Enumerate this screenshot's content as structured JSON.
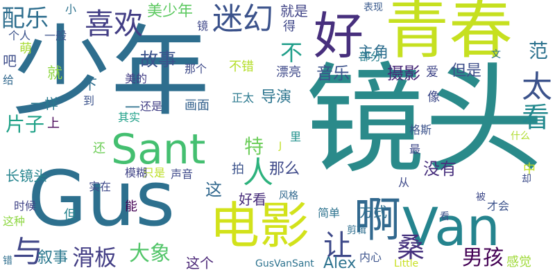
{
  "words": [
    {
      "text": "镜头",
      "color": "#2a8a8a"
    },
    {
      "text": "少年",
      "color": "#2e6e8e"
    },
    {
      "text": "Gus",
      "color": "#2d708e"
    },
    {
      "text": "青春",
      "color": "#c6e020"
    },
    {
      "text": "Van",
      "color": "#25848e"
    },
    {
      "text": "电影",
      "color": "#d2e21b"
    },
    {
      "text": "好",
      "color": "#472f7d"
    },
    {
      "text": "Sant",
      "color": "#44bf70"
    },
    {
      "text": "啊",
      "color": "#31688e"
    },
    {
      "text": "迷幻",
      "color": "#3b528b"
    },
    {
      "text": "喜欢",
      "color": "#433e85"
    },
    {
      "text": "配乐",
      "color": "#2e6e8e"
    },
    {
      "text": "人",
      "color": "#2db27d"
    },
    {
      "text": "让",
      "color": "#3e4989"
    },
    {
      "text": "太",
      "color": "#3b528b"
    },
    {
      "text": "看",
      "color": "#23898e"
    },
    {
      "text": "不",
      "color": "#1f9e89"
    },
    {
      "text": "与",
      "color": "#404688"
    },
    {
      "text": "滑板",
      "color": "#433e85"
    },
    {
      "text": "桑",
      "color": "#46327e"
    },
    {
      "text": "男孩",
      "color": "#440154"
    },
    {
      "text": "大象",
      "color": "#52c569"
    },
    {
      "text": "故事",
      "color": "#3b528b"
    },
    {
      "text": "美少年",
      "color": "#5ec962"
    },
    {
      "text": "范",
      "color": "#2c728e"
    },
    {
      "text": "主角",
      "color": "#2e6e8e"
    },
    {
      "text": "摄影",
      "color": "#482878"
    },
    {
      "text": "音乐",
      "color": "#3b528b"
    },
    {
      "text": "片子",
      "color": "#1fa187"
    },
    {
      "text": "就是",
      "color": "#414487"
    },
    {
      "text": "导演",
      "color": "#2b748e"
    },
    {
      "text": "那么",
      "color": "#3e4989"
    },
    {
      "text": "特",
      "color": "#6ccd5a"
    },
    {
      "text": "没有",
      "color": "#472f7d"
    },
    {
      "text": "这个",
      "color": "#482475"
    },
    {
      "text": "Alex",
      "color": "#2c728e"
    },
    {
      "text": "叙事",
      "color": "#2a788e"
    },
    {
      "text": "长镜头",
      "color": "#25848e"
    },
    {
      "text": "这",
      "color": "#31688e"
    },
    {
      "text": "好看",
      "color": "#472c7a"
    },
    {
      "text": "方式",
      "color": "#2e6e8e"
    },
    {
      "text": "画面",
      "color": "#34618d"
    },
    {
      "text": "不错",
      "color": "#b5de2b"
    },
    {
      "text": "但是",
      "color": "#3d4e8a"
    },
    {
      "text": "感觉",
      "color": "#a0da39"
    },
    {
      "text": "一样",
      "color": "#2a788e"
    },
    {
      "text": "就",
      "color": "#90d743"
    },
    {
      "text": "那个",
      "color": "#3e4a89"
    },
    {
      "text": "漂亮",
      "color": "#3e4989"
    },
    {
      "text": "爱",
      "color": "#404688"
    },
    {
      "text": "像",
      "color": "#3e4a89"
    },
    {
      "text": "部分",
      "color": "#277f8e"
    },
    {
      "text": "美的",
      "color": "#433e85"
    },
    {
      "text": "一般",
      "color": "#3b528b"
    },
    {
      "text": "个人",
      "color": "#3b528b"
    },
    {
      "text": "萌",
      "color": "#a8db34"
    },
    {
      "text": "吧",
      "color": "#3d4d8a"
    },
    {
      "text": "给",
      "color": "#31688e"
    },
    {
      "text": "小",
      "color": "#2c728e"
    },
    {
      "text": "镜",
      "color": "#3f4788"
    },
    {
      "text": "得",
      "color": "#3f4788"
    },
    {
      "text": "表现",
      "color": "#38598c"
    },
    {
      "text": "文",
      "color": "#2c728e"
    },
    {
      "text": "下",
      "color": "#2e6e8e"
    },
    {
      "text": "到",
      "color": "#3b528b"
    },
    {
      "text": "一",
      "color": "#2d708e"
    },
    {
      "text": "还是",
      "color": "#424086"
    },
    {
      "text": "其实",
      "color": "#1fa088"
    },
    {
      "text": "上",
      "color": "#440154"
    },
    {
      "text": "正太",
      "color": "#2a788e"
    },
    {
      "text": "里",
      "color": "#21918c"
    },
    {
      "text": "格斯",
      "color": "#3b528b"
    },
    {
      "text": "什么",
      "color": "#b0dd2f"
    },
    {
      "text": "最",
      "color": "#3e4989"
    },
    {
      "text": "J",
      "color": "#c0df25"
    },
    {
      "text": "中",
      "color": "#c2df23"
    },
    {
      "text": "还",
      "color": "#6ece58"
    },
    {
      "text": "拍",
      "color": "#3b528b"
    },
    {
      "text": "只是",
      "color": "#bddf26"
    },
    {
      "text": "声音",
      "color": "#3e4989"
    },
    {
      "text": "模糊",
      "color": "#414487"
    },
    {
      "text": "却",
      "color": "#3d4d8a"
    },
    {
      "text": "实在",
      "color": "#3e4a89"
    },
    {
      "text": "从",
      "color": "#3e4989"
    },
    {
      "text": "能",
      "color": "#440154"
    },
    {
      "text": "时候",
      "color": "#414487"
    },
    {
      "text": "风格",
      "color": "#31688e"
    },
    {
      "text": "被",
      "color": "#3e4989"
    },
    {
      "text": "才会",
      "color": "#3b528b"
    },
    {
      "text": "这种",
      "color": "#8fd744"
    },
    {
      "text": "但",
      "color": "#25838e"
    },
    {
      "text": "简单",
      "color": "#2c728e"
    },
    {
      "text": "看",
      "color": "#3b528b"
    },
    {
      "text": "剪辑",
      "color": "#2e6e8e"
    },
    {
      "text": "内心",
      "color": "#3b528b"
    },
    {
      "text": "错",
      "color": "#2e6e8e"
    },
    {
      "text": "GusVanSant",
      "color": "#2c728e"
    },
    {
      "text": "Little",
      "color": "#c8e020"
    }
  ]
}
